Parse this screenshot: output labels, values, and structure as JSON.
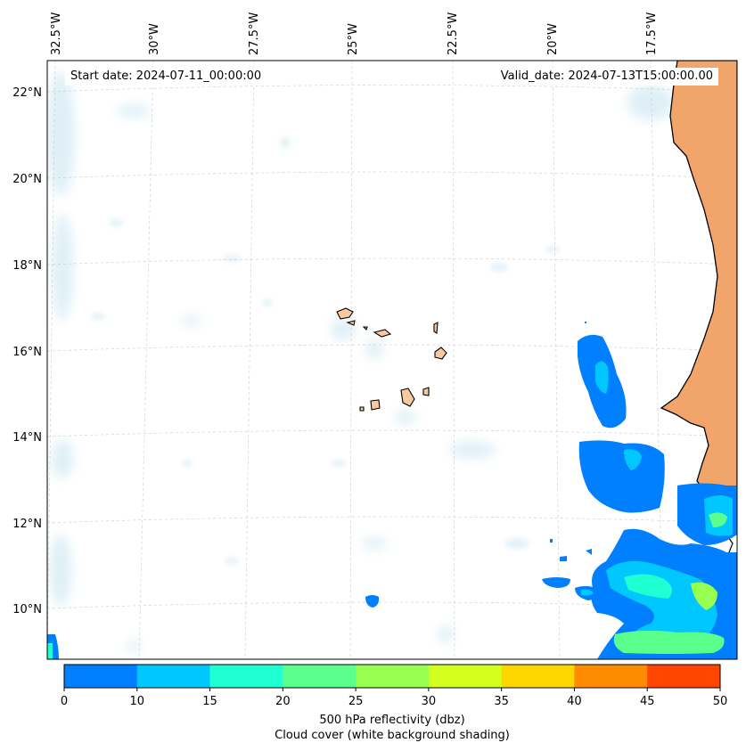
{
  "map": {
    "start_label": "Start date: 2024-07-11_00:00:00",
    "valid_label": "Valid_date: 2024-07-13T15:00:00.00",
    "lon_labels": [
      "32.5°W",
      "30°W",
      "27.5°W",
      "25°W",
      "22.5°W",
      "20°W",
      "17.5°W"
    ],
    "lat_labels": [
      "22°N",
      "20°N",
      "18°N",
      "16°N",
      "14°N",
      "12°N",
      "10°N"
    ],
    "land_color": "#f2a56a",
    "island_color": "#f8c9a0",
    "cloud_color": "#d6ecf4"
  },
  "colorbar": {
    "title": "500 hPa reflectivity (dbz)",
    "subtitle": "Cloud cover (white background shading)",
    "ticks": [
      "0",
      "10",
      "15",
      "20",
      "25",
      "30",
      "35",
      "40",
      "45",
      "50"
    ],
    "colors": [
      "#0080ff",
      "#00c8ff",
      "#1effd2",
      "#5aff8c",
      "#96ff50",
      "#d2ff1e",
      "#ffd700",
      "#ff8c00",
      "#ff4500"
    ]
  }
}
